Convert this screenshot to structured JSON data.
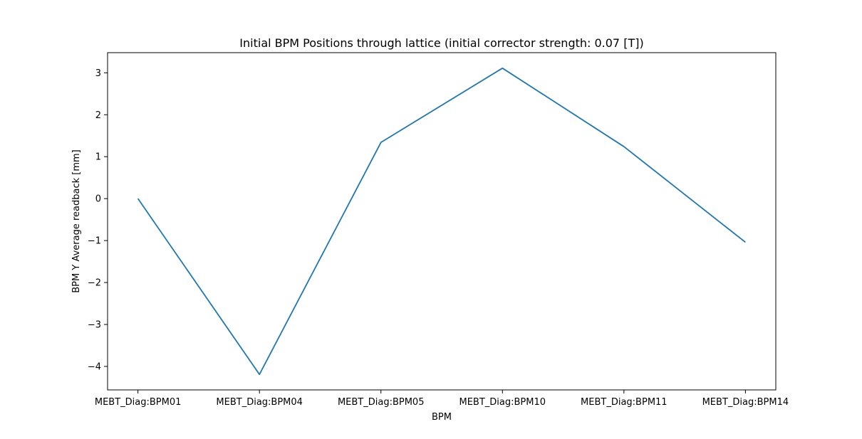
{
  "chart_data": {
    "type": "line",
    "title": "Initial BPM Positions through lattice (initial corrector strength: 0.07 [T])",
    "xlabel": "BPM",
    "ylabel": "BPM Y Average readback [mm]",
    "categories": [
      "MEBT_Diag:BPM01",
      "MEBT_Diag:BPM04",
      "MEBT_Diag:BPM05",
      "MEBT_Diag:BPM10",
      "MEBT_Diag:BPM11",
      "MEBT_Diag:BPM14"
    ],
    "series": [
      {
        "values": [
          0.0,
          -4.19,
          1.34,
          3.11,
          1.24,
          -1.04
        ],
        "color": "#1f77b4"
      }
    ],
    "yticks": [
      -4,
      -3,
      -2,
      -1,
      0,
      1,
      2,
      3
    ],
    "ytick_labels": [
      "−4",
      "−3",
      "−2",
      "−1",
      "0",
      "1",
      "2",
      "3"
    ],
    "ylim": [
      -4.56,
      3.48
    ],
    "grid": false,
    "legend": "none"
  }
}
